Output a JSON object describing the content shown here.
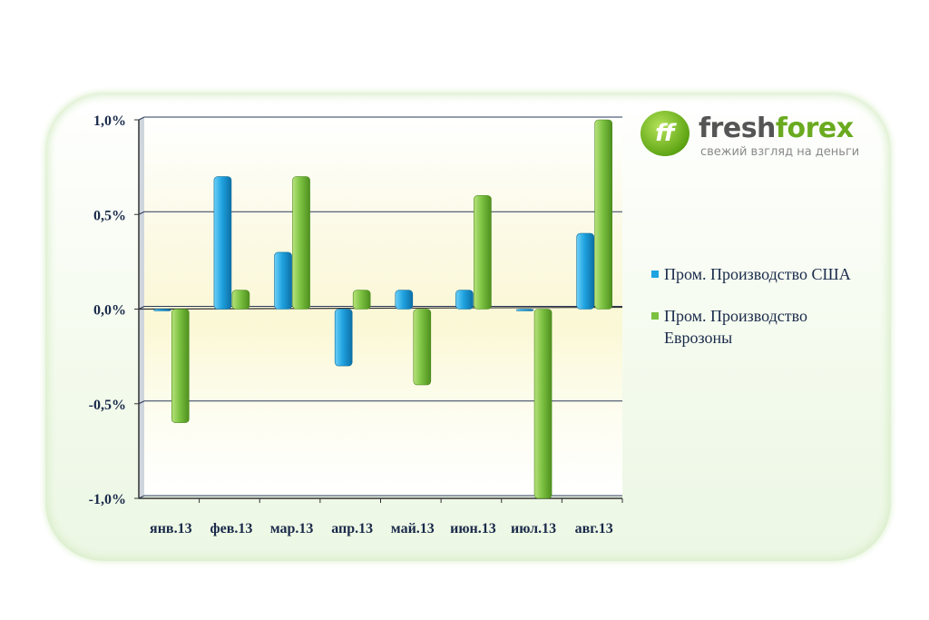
{
  "logo": {
    "mark": "ff",
    "name_part1": "fresh",
    "name_part2": "forex",
    "tagline": "свежий взгляд на деньги"
  },
  "colors": {
    "us": "#1fa3e0",
    "ez": "#7cc242",
    "grid": "#2b3a5a",
    "text": "#1a2a4a"
  },
  "chart_data": {
    "type": "bar",
    "categories": [
      "янв.13",
      "фев.13",
      "мар.13",
      "апр.13",
      "май.13",
      "июн.13",
      "июл.13",
      "авг.13"
    ],
    "series": [
      {
        "name": "Пром. Производство США",
        "values": [
          0.0,
          0.7,
          0.3,
          -0.3,
          0.1,
          0.1,
          0.0,
          0.4
        ]
      },
      {
        "name": "Пром. Производство Еврозоны",
        "values": [
          -0.6,
          0.1,
          0.7,
          0.1,
          -0.4,
          0.6,
          -1.0,
          1.0
        ]
      }
    ],
    "yticks": [
      "1,0%",
      "0,5%",
      "0,0%",
      "-0,5%",
      "-1,0%"
    ],
    "ylim": [
      -1.0,
      1.0
    ],
    "grid": true,
    "legend": "right"
  }
}
